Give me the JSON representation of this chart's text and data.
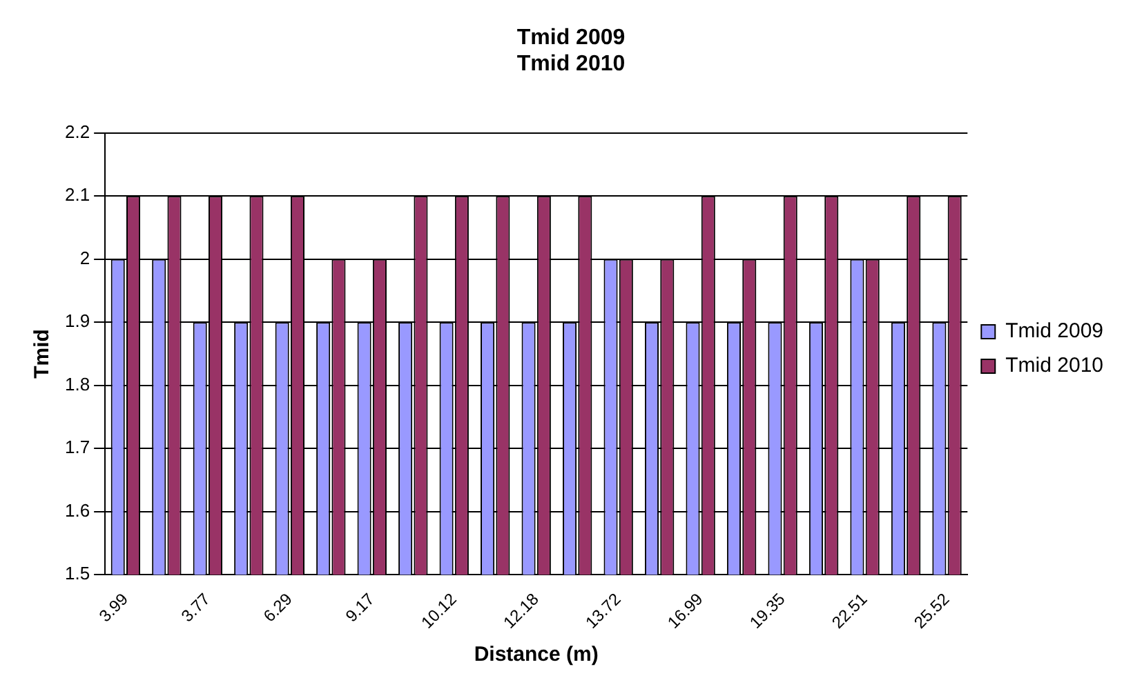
{
  "chart_data": {
    "type": "bar",
    "title": [
      "Tmid 2009",
      "Tmid 2010"
    ],
    "xlabel": "Distance (m)",
    "ylabel": "Tmid",
    "categories": [
      "3.99",
      null,
      "3.77",
      null,
      "6.29",
      null,
      "9.17",
      null,
      "10.12",
      null,
      "12.18",
      null,
      "13.72",
      null,
      "16.99",
      null,
      "19.35",
      null,
      "22.51",
      null,
      "25.52"
    ],
    "series": [
      {
        "name": "Tmid 2009",
        "color": "#9999ff",
        "values": [
          2.0,
          2.0,
          1.9,
          1.9,
          1.9,
          1.9,
          1.9,
          1.9,
          1.9,
          1.9,
          1.9,
          1.9,
          2.0,
          1.9,
          1.9,
          1.9,
          1.9,
          1.9,
          2.0,
          1.9,
          1.9
        ]
      },
      {
        "name": "Tmid 2010",
        "color": "#993366",
        "values": [
          2.1,
          2.1,
          2.1,
          2.1,
          2.1,
          2.0,
          2.0,
          2.1,
          2.1,
          2.1,
          2.1,
          2.1,
          2.0,
          2.0,
          2.1,
          2.0,
          2.1,
          2.1,
          2.0,
          2.1,
          2.1
        ]
      }
    ],
    "ylim": [
      1.5,
      2.2
    ],
    "yticks": [
      1.5,
      1.6,
      1.7,
      1.8,
      1.9,
      2,
      2.1,
      2.2
    ],
    "grid": "y",
    "legend": "right"
  }
}
